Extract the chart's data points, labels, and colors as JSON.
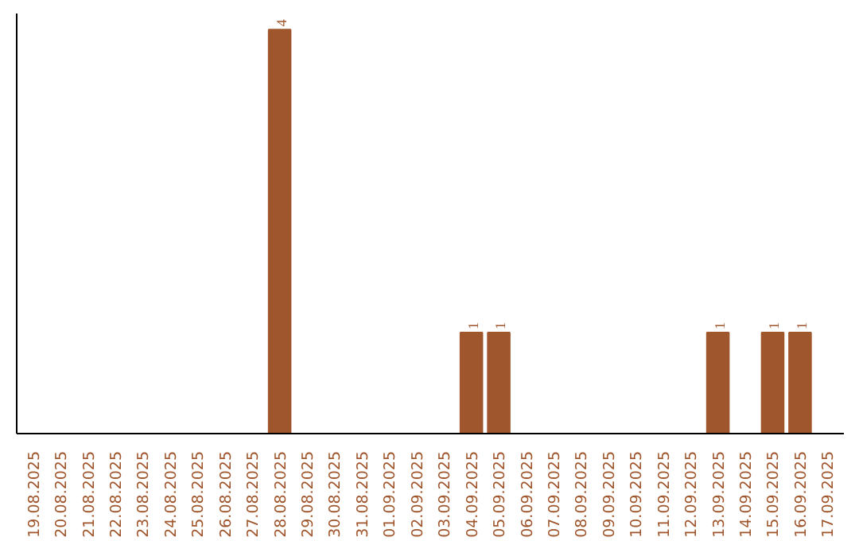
{
  "chart_data": {
    "type": "bar",
    "categories": [
      "19.08.2025",
      "20.08.2025",
      "21.08.2025",
      "22.08.2025",
      "23.08.2025",
      "24.08.2025",
      "25.08.2025",
      "26.08.2025",
      "27.08.2025",
      "28.08.2025",
      "29.08.2025",
      "30.08.2025",
      "31.08.2025",
      "01.09.2025",
      "02.09.2025",
      "03.09.2025",
      "04.09.2025",
      "05.09.2025",
      "06.09.2025",
      "07.09.2025",
      "08.09.2025",
      "09.09.2025",
      "10.09.2025",
      "11.09.2025",
      "12.09.2025",
      "13.09.2025",
      "14.09.2025",
      "15.09.2025",
      "16.09.2025",
      "17.09.2025"
    ],
    "values": [
      0,
      0,
      0,
      0,
      0,
      0,
      0,
      0,
      0,
      4,
      0,
      0,
      0,
      0,
      0,
      0,
      1,
      1,
      0,
      0,
      0,
      0,
      0,
      0,
      0,
      1,
      0,
      1,
      1,
      0
    ],
    "value_labels": [
      null,
      null,
      null,
      null,
      null,
      null,
      null,
      null,
      null,
      "4",
      null,
      null,
      null,
      null,
      null,
      null,
      "1",
      "1",
      null,
      null,
      null,
      null,
      null,
      null,
      null,
      "1",
      null,
      "1",
      "1",
      null
    ],
    "color": "#a0562c",
    "tick_labels": "x",
    "grid": false
  }
}
